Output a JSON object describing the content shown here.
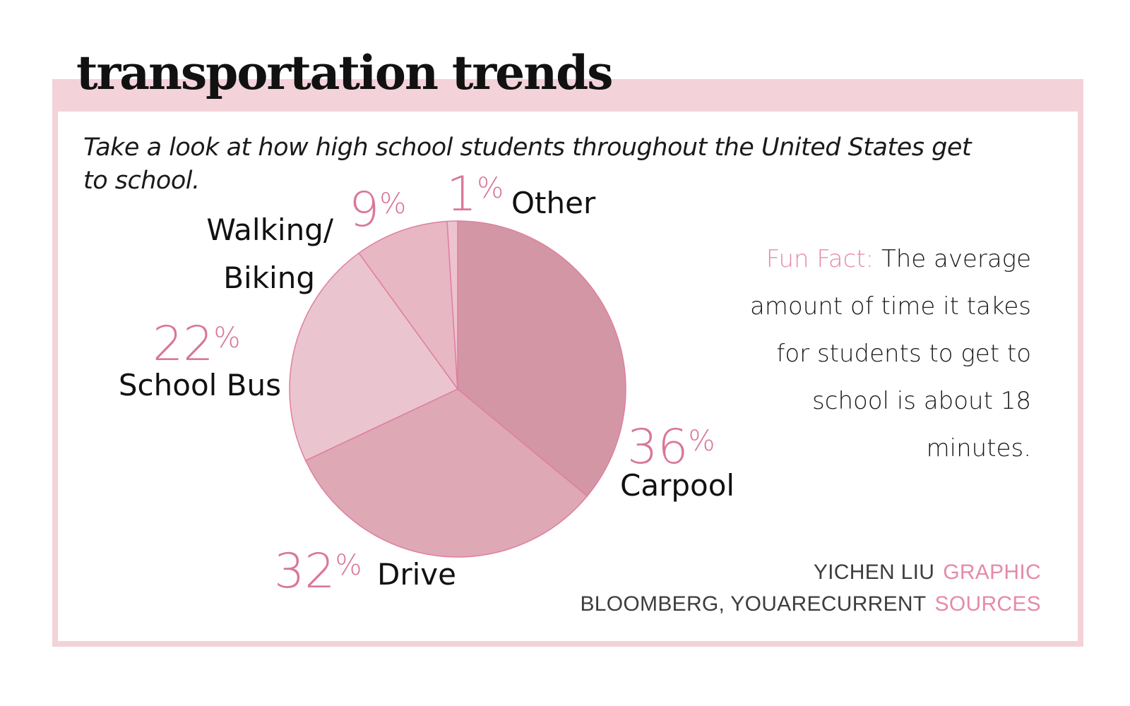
{
  "title": "transportation trends",
  "subtitle": "Take a look at how high school students throughout the United States get to school.",
  "fun_fact": {
    "label": "Fun Fact:",
    "text": "The average amount of time it takes for students to get to school is about 18 minutes."
  },
  "credits": {
    "graphic_name": "YICHEN LIU",
    "graphic_role": "GRAPHIC",
    "sources_name": "BLOOMBERG, YOUARECURRENT",
    "sources_role": "SOURCES"
  },
  "colors": {
    "accent": "#e58aaa",
    "frame": "#f3d2da",
    "slice_stroke": "#e07ea0"
  },
  "chart_data": {
    "type": "pie",
    "unit": "%",
    "slices": [
      {
        "id": "carpool",
        "label": "Carpool",
        "value": 36,
        "color": "#d396a5"
      },
      {
        "id": "drive",
        "label": "Drive",
        "value": 32,
        "color": "#dea8b5"
      },
      {
        "id": "school-bus",
        "label": "School Bus",
        "value": 22,
        "color": "#eac5cf"
      },
      {
        "id": "walking-biking",
        "label": "Walking/ Biking",
        "value": 9,
        "color": "#e7b7c4"
      },
      {
        "id": "other",
        "label": "Other",
        "value": 1,
        "color": "#ecc3ce"
      }
    ]
  }
}
